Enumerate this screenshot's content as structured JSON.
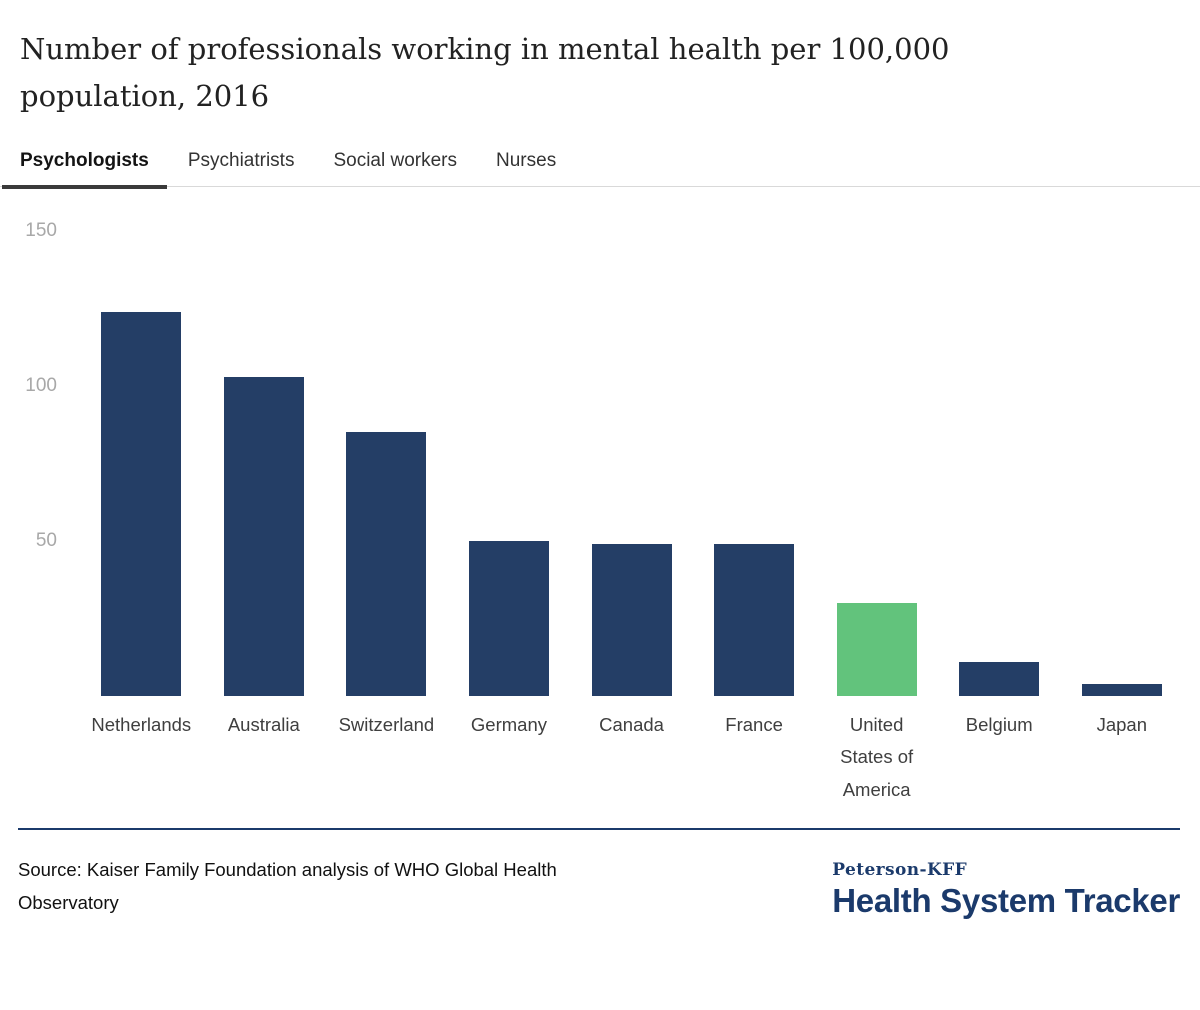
{
  "title": "Number of professionals working in mental health per 100,000 population, 2016",
  "tabs": [
    {
      "label": "Psychologists",
      "active": true
    },
    {
      "label": "Psychiatrists",
      "active": false
    },
    {
      "label": "Social workers",
      "active": false
    },
    {
      "label": "Nurses",
      "active": false
    }
  ],
  "chart_data": {
    "type": "bar",
    "title": "Number of professionals working in mental health per 100,000 population, 2016",
    "categories": [
      "Netherlands",
      "Australia",
      "Switzerland",
      "Germany",
      "Canada",
      "France",
      "United States of America",
      "Belgium",
      "Japan"
    ],
    "values": [
      124,
      103,
      85,
      50,
      49,
      49,
      30,
      11,
      4
    ],
    "highlight_category": "United States of America",
    "xlabel": "",
    "ylabel": "",
    "ylim": [
      0,
      150
    ],
    "yticks": [
      150,
      100,
      50
    ],
    "grid": false,
    "legend": "none",
    "bar_color": "#243e66",
    "highlight_color": "#62c37c"
  },
  "footer": {
    "source": "Source: Kaiser Family Foundation analysis of WHO Global Health Observatory",
    "logo_top": "Peterson-KFF",
    "logo_bottom": "Health System Tracker"
  },
  "colors": {
    "bar_navy": "#243e66",
    "highlight_green": "#62c37c",
    "logo_navy": "#1b3a6b",
    "tick_gray": "#a8a8a8",
    "tab_underline": "#3a3a3a",
    "divider_navy": "#1b3a6b",
    "tab_separator": "#d9d9d9"
  }
}
